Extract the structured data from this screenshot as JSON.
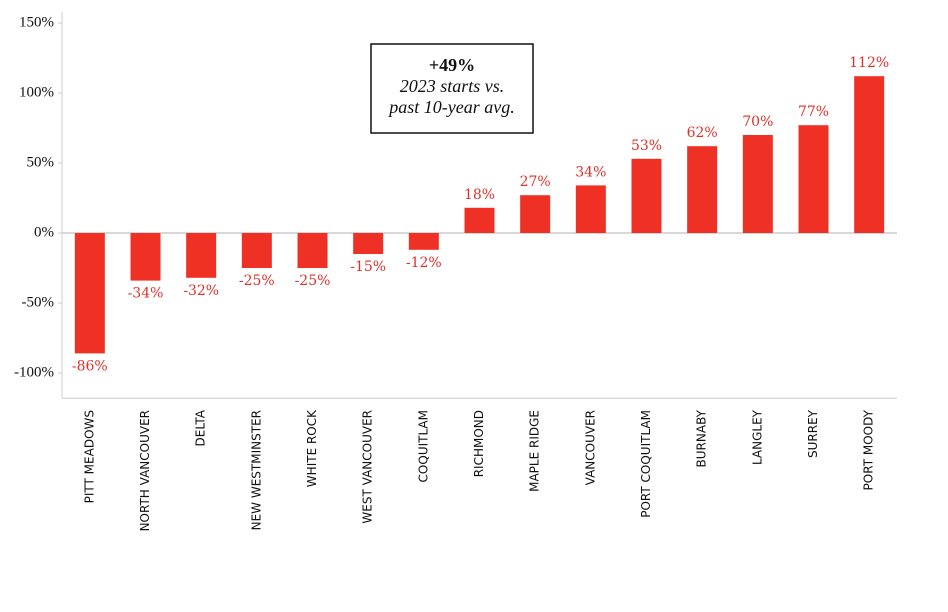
{
  "chart_data": {
    "type": "bar",
    "categories": [
      "PITT MEADOWS",
      "NORTH VANCOUVER",
      "DELTA",
      "NEW WESTMINSTER",
      "WHITE ROCK",
      "WEST VANCOUVER",
      "COQUITLAM",
      "RICHMOND",
      "MAPLE RIDGE",
      "VANCOUVER",
      "PORT COQUITLAM",
      "BURNABY",
      "LANGLEY",
      "SURREY",
      "PORT MOODY"
    ],
    "values": [
      -86,
      -34,
      -32,
      -25,
      -25,
      -15,
      -12,
      18,
      27,
      34,
      53,
      62,
      70,
      77,
      112
    ],
    "value_labels": [
      "-86%",
      "-34%",
      "-32%",
      "-25%",
      "-25%",
      "-15%",
      "-12%",
      "18%",
      "27%",
      "34%",
      "53%",
      "62%",
      "70%",
      "77%",
      "112%"
    ],
    "color": "#ee3124",
    "ylim": [
      -118,
      158
    ],
    "yticks": [
      {
        "value": -100,
        "label": "-100%"
      },
      {
        "value": -50,
        "label": "-50%"
      },
      {
        "value": 0,
        "label": "0%"
      },
      {
        "value": 50,
        "label": "50%"
      },
      {
        "value": 100,
        "label": "100%"
      },
      {
        "value": 150,
        "label": "150%"
      }
    ],
    "annotation": [
      "+49%",
      "2023 starts vs.",
      "past 10-year avg."
    ]
  }
}
